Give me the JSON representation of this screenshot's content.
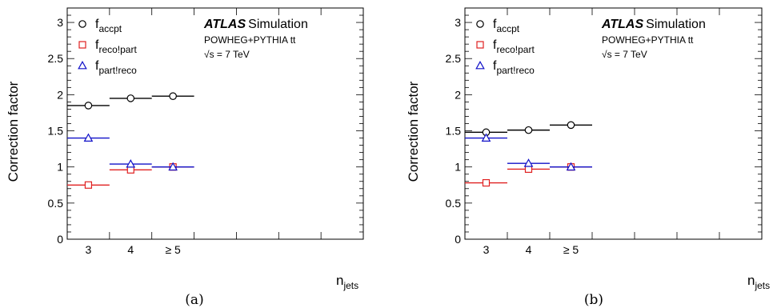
{
  "panels": [
    {
      "caption": "(a)",
      "ylabel": "Correction factor",
      "xlabel_main": "n",
      "xlabel_sub": "jets",
      "atlas_label": "ATLAS",
      "atlas_suffix": "Simulation",
      "generator": "POWHEG+PYTHIA t",
      "generator_tbar": "t̄",
      "energy_prefix": "√s",
      "energy_rest": " = 7 TeV",
      "legend": [
        {
          "main": "f",
          "sub": "accpt"
        },
        {
          "main": "f",
          "sub": "reco!part"
        },
        {
          "main": "f",
          "sub": "part!reco"
        }
      ]
    },
    {
      "caption": "(b)",
      "ylabel": "Correction factor",
      "xlabel_main": "n",
      "xlabel_sub": "jets",
      "atlas_label": "ATLAS",
      "atlas_suffix": "Simulation",
      "generator": "POWHEG+PYTHIA t",
      "generator_tbar": "t̄",
      "energy_prefix": "√s",
      "energy_rest": " = 7 TeV",
      "legend": [
        {
          "main": "f",
          "sub": "accpt"
        },
        {
          "main": "f",
          "sub": "reco!part"
        },
        {
          "main": "f",
          "sub": "part!reco"
        }
      ]
    }
  ],
  "colors": {
    "accpt": "#000000",
    "recopart": "#e02020",
    "partreco": "#1010c8"
  },
  "chart_data": [
    {
      "type": "scatter",
      "title": "",
      "xlabel": "n_jets",
      "ylabel": "Correction factor",
      "categories": [
        "3",
        "4",
        "≥ 5"
      ],
      "ylim": [
        0,
        3.2
      ],
      "yticks": [
        "0",
        "0.5",
        "1",
        "1.5",
        "2",
        "2.5",
        "3"
      ],
      "series": [
        {
          "name": "f_accpt",
          "marker": "circle",
          "values": [
            1.85,
            1.95,
            1.98
          ]
        },
        {
          "name": "f_reco!part",
          "marker": "square",
          "values": [
            0.75,
            0.96,
            1.0
          ]
        },
        {
          "name": "f_part!reco",
          "marker": "triangle",
          "values": [
            1.4,
            1.04,
            1.0
          ]
        }
      ]
    },
    {
      "type": "scatter",
      "title": "",
      "xlabel": "n_jets",
      "ylabel": "Correction factor",
      "categories": [
        "3",
        "4",
        "≥ 5"
      ],
      "ylim": [
        0,
        3.2
      ],
      "yticks": [
        "0",
        "0.5",
        "1",
        "1.5",
        "2",
        "2.5",
        "3"
      ],
      "series": [
        {
          "name": "f_accpt",
          "marker": "circle",
          "values": [
            1.48,
            1.51,
            1.58
          ]
        },
        {
          "name": "f_reco!part",
          "marker": "square",
          "values": [
            0.78,
            0.97,
            1.0
          ]
        },
        {
          "name": "f_part!reco",
          "marker": "triangle",
          "values": [
            1.4,
            1.05,
            1.0
          ]
        }
      ]
    }
  ]
}
